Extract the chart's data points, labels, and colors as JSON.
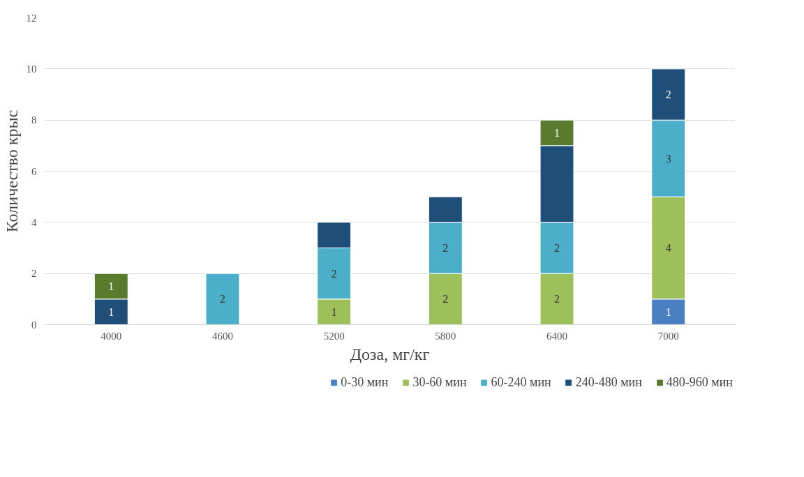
{
  "chart_data": {
    "type": "bar",
    "stacked": true,
    "xlabel": "Доза, мг/кг",
    "ylabel": "Количество крыс",
    "categories": [
      "4000",
      "4600",
      "5200",
      "5800",
      "6400",
      "7000"
    ],
    "ylim": [
      0,
      12
    ],
    "yticks": [
      0,
      2,
      4,
      6,
      8,
      10,
      12
    ],
    "grid": "y",
    "legend": "bottom",
    "series": [
      {
        "name": "0-30 мин",
        "color": "#4a7fc1",
        "values": [
          null,
          null,
          null,
          null,
          null,
          1
        ],
        "value_labels": [
          null,
          null,
          null,
          null,
          null,
          "1"
        ]
      },
      {
        "name": "30-60 мин",
        "color": "#9dc05a",
        "values": [
          null,
          null,
          1,
          2,
          2,
          4
        ],
        "value_labels": [
          null,
          null,
          "1",
          "2",
          "2",
          "4"
        ]
      },
      {
        "name": "60-240 мин",
        "color": "#4bafc9",
        "values": [
          null,
          2,
          2,
          2,
          2,
          3
        ],
        "value_labels": [
          null,
          "2",
          "2",
          "2",
          "2",
          "3"
        ]
      },
      {
        "name": "240-480 мин",
        "color": "#1f4e79",
        "values": [
          1,
          null,
          1,
          1,
          3,
          2
        ],
        "value_labels": [
          "1",
          null,
          null,
          null,
          null,
          "2"
        ]
      },
      {
        "name": "480-960 мин",
        "color": "#5a7a2e",
        "values": [
          1,
          null,
          null,
          null,
          1,
          null
        ],
        "value_labels": [
          "1",
          null,
          null,
          null,
          "1",
          null
        ]
      }
    ]
  }
}
